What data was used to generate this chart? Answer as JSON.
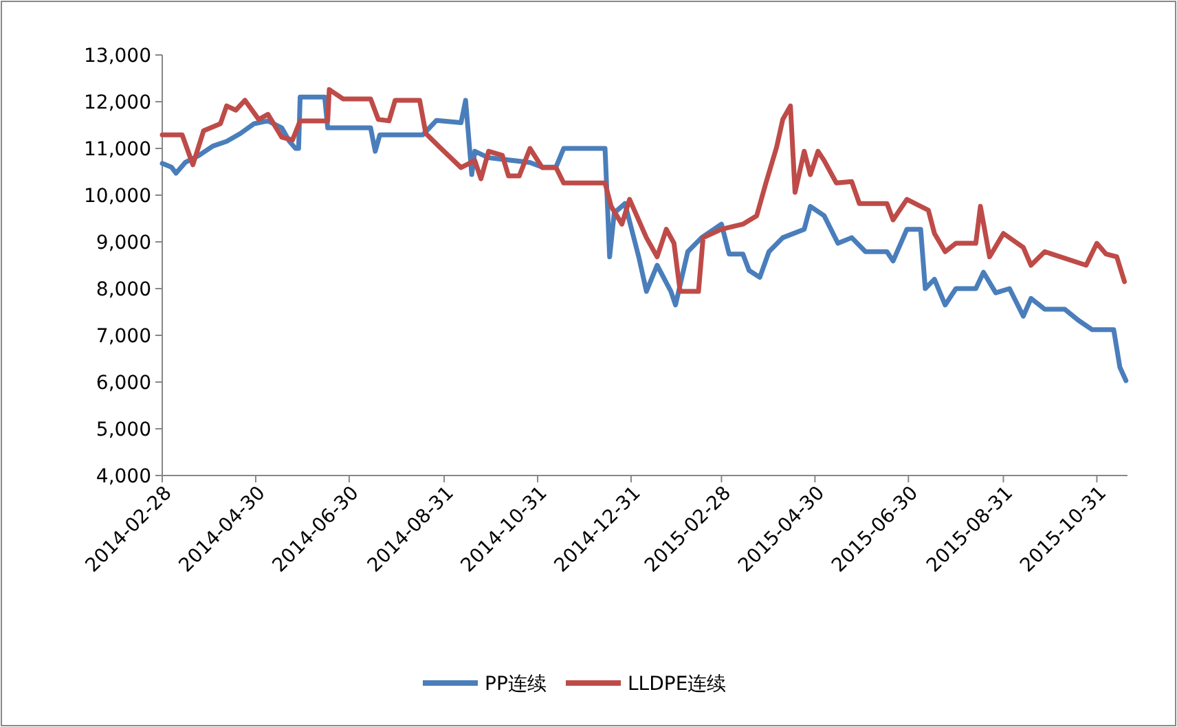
{
  "chart_data": {
    "type": "line",
    "xlim": [
      "2014-02-28",
      "2015-11-20"
    ],
    "xticks": [
      "2014-02-28",
      "2014-04-30",
      "2014-06-30",
      "2014-08-31",
      "2014-10-31",
      "2014-12-31",
      "2015-02-28",
      "2015-04-30",
      "2015-06-30",
      "2015-08-31",
      "2015-10-31"
    ],
    "ylim": [
      4000,
      13000
    ],
    "yticks": [
      {
        "value": 4000,
        "label": "4,000"
      },
      {
        "value": 5000,
        "label": "5,000"
      },
      {
        "value": 6000,
        "label": "6,000"
      },
      {
        "value": 7000,
        "label": "7,000"
      },
      {
        "value": 8000,
        "label": "8,000"
      },
      {
        "value": 9000,
        "label": "9,000"
      },
      {
        "value": 10000,
        "label": "10,000"
      },
      {
        "value": 11000,
        "label": "11,000"
      },
      {
        "value": 12000,
        "label": "12,000"
      },
      {
        "value": 13000,
        "label": "13,000"
      }
    ],
    "grid": false,
    "legend": "bottom",
    "marker": "none",
    "line_style": "solid",
    "series": [
      {
        "name": "PP连续",
        "color": "#4a7ebb",
        "x": [
          "2014-02-28",
          "2014-03-06",
          "2014-03-09",
          "2014-03-15",
          "2014-03-24",
          "2014-04-02",
          "2014-04-11",
          "2014-04-20",
          "2014-04-29",
          "2014-05-08",
          "2014-05-17",
          "2014-05-22",
          "2014-05-26",
          "2014-05-28",
          "2014-05-29",
          "2014-06-14",
          "2014-06-16",
          "2014-07-14",
          "2014-07-17",
          "2014-07-20",
          "2014-08-17",
          "2014-08-26",
          "2014-09-11",
          "2014-09-14",
          "2014-09-18",
          "2014-09-20",
          "2014-09-29",
          "2014-10-26",
          "2014-11-03",
          "2014-11-12",
          "2014-11-17",
          "2014-12-14",
          "2014-12-17",
          "2014-12-20",
          "2014-12-27",
          "2015-01-05",
          "2015-01-10",
          "2015-01-17",
          "2015-01-26",
          "2015-01-29",
          "2015-02-06",
          "2015-02-15",
          "2015-02-28",
          "2015-03-05",
          "2015-03-14",
          "2015-03-18",
          "2015-03-25",
          "2015-03-31",
          "2015-04-09",
          "2015-04-23",
          "2015-04-27",
          "2015-05-06",
          "2015-05-15",
          "2015-05-24",
          "2015-06-02",
          "2015-06-16",
          "2015-06-20",
          "2015-06-29",
          "2015-07-08",
          "2015-07-11",
          "2015-07-17",
          "2015-07-24",
          "2015-07-31",
          "2015-08-13",
          "2015-08-18",
          "2015-08-26",
          "2015-09-04",
          "2015-09-13",
          "2015-09-18",
          "2015-09-27",
          "2015-10-10",
          "2015-10-19",
          "2015-10-28",
          "2015-11-11",
          "2015-11-15",
          "2015-11-19"
        ],
        "values": [
          10680,
          10600,
          10470,
          10700,
          10850,
          11050,
          11150,
          11320,
          11530,
          11590,
          11440,
          11150,
          11000,
          11000,
          12100,
          12100,
          11440,
          11440,
          10940,
          11290,
          11290,
          11600,
          11550,
          12030,
          10440,
          10940,
          10800,
          10700,
          10600,
          10600,
          11000,
          11000,
          8680,
          9620,
          9820,
          8680,
          7940,
          8500,
          7940,
          7650,
          8790,
          9090,
          9380,
          8740,
          8740,
          8390,
          8240,
          8790,
          9090,
          9270,
          9760,
          9560,
          8970,
          9090,
          8790,
          8790,
          8590,
          9270,
          9270,
          8000,
          8200,
          7650,
          8000,
          8000,
          8350,
          7910,
          8000,
          7410,
          7790,
          7560,
          7560,
          7320,
          7120,
          7120,
          6320,
          6030
        ]
      },
      {
        "name": "LLDPE连续",
        "color": "#be4b48",
        "x": [
          "2014-02-28",
          "2014-03-13",
          "2014-03-20",
          "2014-03-27",
          "2014-04-07",
          "2014-04-11",
          "2014-04-17",
          "2014-04-23",
          "2014-05-02",
          "2014-05-08",
          "2014-05-17",
          "2014-05-24",
          "2014-05-29",
          "2014-06-16",
          "2014-06-17",
          "2014-06-26",
          "2014-07-14",
          "2014-07-19",
          "2014-07-26",
          "2014-07-30",
          "2014-08-15",
          "2014-08-19",
          "2014-08-28",
          "2014-09-11",
          "2014-09-20",
          "2014-09-24",
          "2014-09-29",
          "2014-10-08",
          "2014-10-12",
          "2014-10-19",
          "2014-10-26",
          "2014-11-03",
          "2014-11-12",
          "2014-11-17",
          "2014-12-14",
          "2014-12-18",
          "2014-12-25",
          "2014-12-30",
          "2015-01-10",
          "2015-01-17",
          "2015-01-23",
          "2015-01-28",
          "2015-02-01",
          "2015-02-13",
          "2015-02-16",
          "2015-02-28",
          "2015-03-14",
          "2015-03-23",
          "2015-03-29",
          "2015-04-05",
          "2015-04-09",
          "2015-04-14",
          "2015-04-17",
          "2015-04-23",
          "2015-04-27",
          "2015-05-02",
          "2015-05-06",
          "2015-05-14",
          "2015-05-24",
          "2015-05-29",
          "2015-06-16",
          "2015-06-20",
          "2015-06-29",
          "2015-07-13",
          "2015-07-17",
          "2015-07-24",
          "2015-07-31",
          "2015-08-13",
          "2015-08-16",
          "2015-08-22",
          "2015-08-31",
          "2015-09-13",
          "2015-09-18",
          "2015-09-27",
          "2015-10-24",
          "2015-10-31",
          "2015-11-06",
          "2015-11-13",
          "2015-11-18"
        ],
        "values": [
          11290,
          11290,
          10650,
          11380,
          11530,
          11910,
          11820,
          12030,
          11620,
          11730,
          11240,
          11180,
          11590,
          11590,
          12260,
          12060,
          12060,
          11620,
          11590,
          12030,
          12030,
          11320,
          11030,
          10590,
          10740,
          10350,
          10940,
          10850,
          10410,
          10410,
          11000,
          10590,
          10590,
          10260,
          10260,
          9760,
          9380,
          9910,
          9090,
          8680,
          9270,
          8970,
          7940,
          7940,
          9090,
          9270,
          9380,
          9560,
          10260,
          11030,
          11620,
          11910,
          10060,
          10940,
          10440,
          10940,
          10740,
          10260,
          10290,
          9820,
          9820,
          9470,
          9910,
          9680,
          9180,
          8790,
          8970,
          8970,
          9760,
          8680,
          9180,
          8880,
          8500,
          8790,
          8500,
          8970,
          8740,
          8680,
          8150
        ]
      }
    ]
  }
}
